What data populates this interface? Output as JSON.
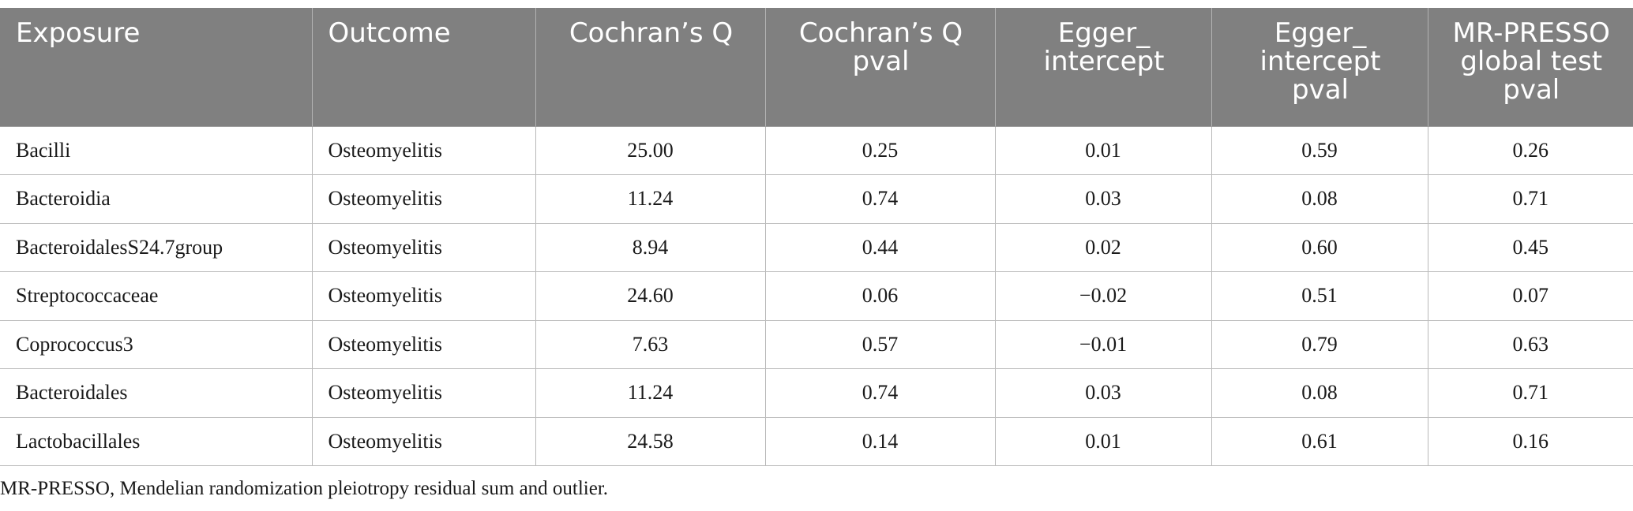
{
  "table": {
    "headers": [
      "Exposure",
      "Outcome",
      "Cochran’s Q",
      "Cochran’s Q pval",
      "Egger_ intercept",
      "Egger_ intercept pval",
      "MR-PRESSO global test pval"
    ],
    "rows": [
      [
        "Bacilli",
        "Osteomyelitis",
        "25.00",
        "0.25",
        "0.01",
        "0.59",
        "0.26"
      ],
      [
        "Bacteroidia",
        "Osteomyelitis",
        "11.24",
        "0.74",
        "0.03",
        "0.08",
        "0.71"
      ],
      [
        "BacteroidalesS24.7group",
        "Osteomyelitis",
        "8.94",
        "0.44",
        "0.02",
        "0.60",
        "0.45"
      ],
      [
        "Streptococcaceae",
        "Osteomyelitis",
        "24.60",
        "0.06",
        "−0.02",
        "0.51",
        "0.07"
      ],
      [
        "Coprococcus3",
        "Osteomyelitis",
        "7.63",
        "0.57",
        "−0.01",
        "0.79",
        "0.63"
      ],
      [
        "Bacteroidales",
        "Osteomyelitis",
        "11.24",
        "0.74",
        "0.03",
        "0.08",
        "0.71"
      ],
      [
        "Lactobacillales",
        "Osteomyelitis",
        "24.58",
        "0.14",
        "0.01",
        "0.61",
        "0.16"
      ]
    ]
  },
  "footnote": "MR-PRESSO, Mendelian randomization pleiotropy residual sum and outlier.",
  "colors": {
    "header_background": "#808080",
    "header_text": "#ffffff",
    "body_text": "#1a1a1a",
    "grid_lines": "#bdbdbd"
  }
}
